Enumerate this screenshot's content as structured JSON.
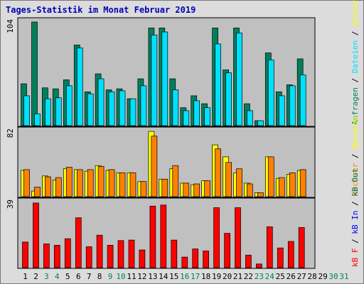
{
  "title": "Tages-Statistik im Monat Februar 2019",
  "colors": {
    "panel_bg": "#c0c0c0",
    "anfragen": "#00805c",
    "dateien": "#00e0ff",
    "seiten": "#ffff00",
    "rechner": "#ff8000",
    "kbytes": "#ff0000",
    "weekday": "#000000",
    "weekend": "#00805c",
    "label_blue": "#0000ff",
    "title_blue": "#0000b4"
  },
  "chart_data": {
    "type": "bar",
    "title": "Tages-Statistik im Monat Februar 2019",
    "categories": [
      "1",
      "2",
      "3",
      "4",
      "5",
      "6",
      "7",
      "8",
      "9",
      "10",
      "11",
      "12",
      "13",
      "14",
      "15",
      "16",
      "17",
      "18",
      "19",
      "20",
      "21",
      "22",
      "23",
      "24",
      "25",
      "26",
      "27",
      "28",
      "29",
      "30",
      "31"
    ],
    "day_types": [
      "wd",
      "wd",
      "we",
      "we",
      "wd",
      "wd",
      "wd",
      "wd",
      "we",
      "we",
      "wd",
      "wd",
      "wd",
      "wd",
      "wd",
      "we",
      "we",
      "wd",
      "wd",
      "wd",
      "wd",
      "wd",
      "we",
      "we",
      "wd",
      "wd",
      "wd",
      "wd",
      "wd",
      "we",
      "we"
    ],
    "panels": [
      {
        "ymax_label": "104",
        "ymax": 104,
        "legend": [
          {
            "text": "Anfragen",
            "color": "#00805c"
          },
          {
            "text": " / ",
            "color": "#000000"
          },
          {
            "text": "Dateien",
            "color": "#00e0ff"
          },
          {
            "text": " / ",
            "color": "#000000"
          },
          {
            "text": "Seiten",
            "color": "#ffff00"
          }
        ],
        "series": [
          {
            "name": "Anfragen",
            "color": "#00805c",
            "values": [
              42,
              104,
              38,
              37,
              46,
              81,
              34,
              52,
              36,
              37,
              27,
              47,
              98,
              98,
              47,
              18,
              30,
              22,
              98,
              56,
              98,
              22,
              5,
              73,
              34,
              41,
              67,
              null,
              null,
              null,
              null
            ]
          },
          {
            "name": "Dateien",
            "color": "#00e0ff",
            "values": [
              30,
              12,
              27,
              28,
              40,
              78,
              32,
              47,
              34,
              35,
              27,
              40,
              91,
              94,
              36,
              15,
              25,
              18,
              82,
              53,
              93,
              15,
              5,
              66,
              30,
              40,
              51,
              null,
              null,
              null,
              null
            ]
          }
        ]
      },
      {
        "ymax_label": "82",
        "ymax": 82,
        "legend": [
          {
            "text": "Rechner",
            "color": "#ff8000"
          },
          {
            "text": " / ",
            "color": "#000000"
          },
          {
            "text": "Besuche",
            "color": "#ffff00"
          }
        ],
        "series": [
          {
            "name": "Besuche",
            "color": "#ffff00",
            "values": [
              33,
              7,
              26,
              21,
              35,
              34,
              32,
              39,
              33,
              30,
              30,
              19,
              82,
              22,
              35,
              17,
              15,
              20,
              65,
              50,
              30,
              17,
              5,
              50,
              23,
              28,
              33,
              null,
              null,
              null,
              null
            ]
          },
          {
            "name": "Rechner",
            "color": "#ff8000",
            "values": [
              34,
              12,
              25,
              24,
              37,
              34,
              34,
              38,
              34,
              30,
              30,
              19,
              76,
              22,
              39,
              17,
              16,
              20,
              60,
              43,
              35,
              16,
              5,
              50,
              24,
              30,
              34,
              null,
              null,
              null,
              null
            ]
          }
        ]
      },
      {
        "ymax_label": "39",
        "ymax": 39,
        "legend": [
          {
            "text": "kB F",
            "color": "#ff0000"
          },
          {
            "text": " / ",
            "color": "#000000"
          },
          {
            "text": "kB In",
            "color": "#0000ff"
          },
          {
            "text": " / ",
            "color": "#000000"
          },
          {
            "text": "kB Out",
            "color": "#00805c"
          }
        ],
        "series": [
          {
            "name": "kB F",
            "color": "#ff0000",
            "values": [
              15.3,
              38.6,
              14.2,
              13.4,
              17.3,
              29.8,
              12.5,
              19.4,
              13.4,
              16.2,
              16.5,
              10.6,
              36.8,
              37.4,
              16.5,
              6.3,
              11.2,
              10.0,
              35.8,
              20.5,
              35.8,
              7.5,
              2.2,
              24.4,
              11.8,
              15.7,
              24.0,
              null,
              null,
              null,
              null
            ]
          }
        ]
      }
    ]
  }
}
